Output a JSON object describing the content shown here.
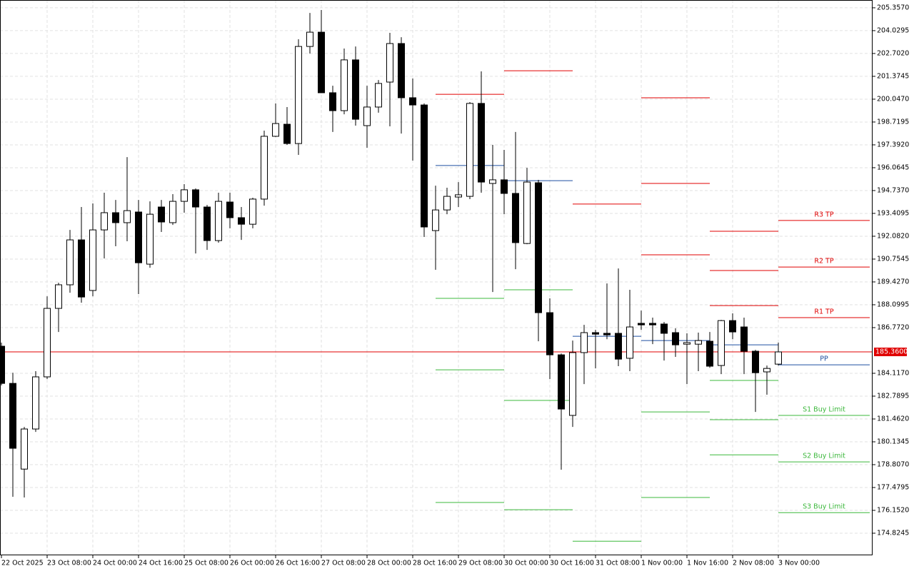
{
  "chart_data": {
    "type": "candlestick",
    "categories": [
      "22 Oct 2025",
      null,
      null,
      null,
      "23 Oct 08:00",
      null,
      null,
      null,
      "24 Oct 00:00",
      null,
      null,
      null,
      "24 Oct 16:00",
      null,
      null,
      null,
      "25 Oct 08:00",
      null,
      null,
      null,
      "26 Oct 00:00",
      null,
      null,
      null,
      "26 Oct 16:00",
      null,
      null,
      null,
      "27 Oct 08:00",
      null,
      null,
      null,
      "28 Oct 00:00",
      null,
      null,
      null,
      "28 Oct 16:00",
      null,
      null,
      null,
      "29 Oct 08:00",
      null,
      null,
      null,
      "30 Oct 00:00",
      null,
      null,
      null,
      "30 Oct 16:00",
      null,
      null,
      null,
      "31 Oct 08:00",
      null,
      null,
      null,
      "1 Nov 00:00",
      null,
      null,
      null,
      "1 Nov 16:00",
      null,
      null,
      null,
      "2 Nov 08:00",
      null,
      null,
      null,
      "3 Nov 00:00"
    ],
    "open": [
      185.69,
      183.53,
      178.55,
      180.88,
      183.91,
      187.89,
      189.26,
      191.87,
      188.93,
      192.45,
      193.45,
      192.87,
      193.49,
      190.46,
      193.78,
      192.87,
      194.11,
      194.78,
      193.78,
      191.83,
      194.07,
      193.16,
      192.78,
      194.24,
      197.89,
      198.59,
      197.47,
      203.11,
      203.94,
      200.42,
      199.38,
      202.33,
      198.51,
      199.59,
      201.04,
      203.28,
      200.13,
      199.71,
      192.41,
      193.61,
      194.36,
      194.4,
      199.8,
      195.15,
      195.36,
      194.57,
      191.66,
      195.19,
      187.64,
      185.19,
      181.67,
      185.32,
      186.48,
      186.44,
      186.44,
      184.99,
      187.02,
      187.02,
      186.98,
      186.48,
      185.81,
      185.81,
      185.98,
      184.57,
      187.18,
      186.81,
      185.4,
      184.2,
      184.65
    ],
    "high": [
      185.9,
      184.15,
      181.0,
      184.24,
      188.59,
      189.38,
      192.45,
      193.78,
      193.99,
      194.61,
      194.19,
      196.68,
      194.19,
      194.11,
      194.19,
      194.53,
      195.11,
      194.86,
      193.9,
      194.61,
      194.61,
      193.78,
      194.32,
      198.22,
      199.8,
      199.59,
      203.53,
      205.06,
      205.23,
      200.83,
      202.99,
      203.11,
      200.83,
      201.16,
      203.9,
      203.65,
      201.25,
      199.8,
      195.02,
      194.9,
      195.23,
      199.88,
      201.66,
      197.39,
      197.1,
      198.14,
      196.06,
      195.36,
      188.47,
      185.27,
      186.02,
      186.93,
      186.64,
      189.34,
      190.21,
      188.97,
      187.76,
      187.35,
      187.1,
      186.73,
      186.44,
      186.48,
      186.52,
      187.22,
      187.6,
      187.35,
      185.48,
      184.57,
      185.9
    ],
    "low": [
      183.41,
      176.94,
      176.9,
      180.71,
      183.78,
      186.52,
      188.8,
      188.22,
      188.59,
      190.79,
      191.5,
      191.79,
      188.72,
      190.25,
      192.33,
      192.74,
      193.45,
      191.08,
      191.29,
      191.71,
      192.54,
      191.87,
      192.54,
      193.86,
      197.85,
      197.39,
      196.81,
      202.7,
      200.4,
      198.14,
      199.17,
      198.51,
      197.22,
      199.26,
      198.47,
      198.05,
      196.48,
      192.04,
      190.13,
      193.36,
      193.78,
      194.24,
      194.61,
      188.84,
      193.36,
      190.17,
      191.62,
      185.98,
      183.78,
      178.51,
      181.0,
      183.49,
      184.4,
      186.1,
      184.53,
      184.24,
      186.64,
      185.81,
      184.86,
      185.07,
      183.49,
      184.24,
      184.44,
      184.07,
      186.1,
      184.07,
      181.87,
      182.87,
      184.57
    ],
    "close": [
      183.53,
      179.76,
      180.88,
      183.91,
      187.89,
      189.26,
      191.87,
      188.55,
      192.45,
      193.45,
      192.87,
      193.57,
      190.54,
      193.36,
      192.91,
      194.11,
      194.78,
      193.78,
      191.83,
      194.11,
      193.16,
      192.78,
      194.24,
      197.89,
      198.63,
      197.47,
      203.11,
      203.94,
      200.42,
      199.38,
      202.33,
      198.88,
      199.59,
      200.96,
      203.28,
      200.13,
      199.71,
      192.62,
      193.61,
      194.4,
      194.49,
      199.8,
      195.23,
      195.36,
      194.57,
      191.71,
      195.23,
      187.64,
      185.19,
      182.04,
      185.32,
      186.48,
      186.39,
      186.35,
      184.94,
      186.81,
      186.93,
      186.93,
      186.44,
      185.77,
      185.9,
      186.02,
      184.53,
      187.18,
      186.52,
      185.4,
      184.15,
      184.4,
      185.36
    ],
    "up_color": "#ffffff",
    "down_color": "#000000",
    "ylim": [
      173.54,
      205.81
    ],
    "yticks": [
      {
        "value": 205.357,
        "label": "205.3570"
      },
      {
        "value": 204.0295,
        "label": "204.0295"
      },
      {
        "value": 202.702,
        "label": "202.7020"
      },
      {
        "value": 201.3745,
        "label": "201.3745"
      },
      {
        "value": 200.047,
        "label": "200.0470"
      },
      {
        "value": 198.7195,
        "label": "198.7195"
      },
      {
        "value": 197.392,
        "label": "197.3920"
      },
      {
        "value": 196.0645,
        "label": "196.0645"
      },
      {
        "value": 194.737,
        "label": "194.7370"
      },
      {
        "value": 193.4095,
        "label": "193.4095"
      },
      {
        "value": 192.082,
        "label": "192.0820"
      },
      {
        "value": 190.7545,
        "label": "190.7545"
      },
      {
        "value": 189.427,
        "label": "189.4270"
      },
      {
        "value": 188.0995,
        "label": "188.0995"
      },
      {
        "value": 186.772,
        "label": "186.7720"
      },
      {
        "value": 184.117,
        "label": "184.1170"
      },
      {
        "value": 182.7895,
        "label": "182.7895"
      },
      {
        "value": 181.462,
        "label": "181.4620"
      },
      {
        "value": 180.1345,
        "label": "180.1345"
      },
      {
        "value": 178.807,
        "label": "178.8070"
      },
      {
        "value": 177.4795,
        "label": "177.4795"
      },
      {
        "value": 176.152,
        "label": "176.1520"
      },
      {
        "value": 174.8245,
        "label": "174.8245"
      }
    ],
    "grid": true,
    "last_price": {
      "value": 185.36,
      "label": "185.3600",
      "color": "#e00000"
    },
    "period_start": [
      38,
      44,
      50,
      56,
      62,
      68
    ],
    "levels": [
      {
        "name": "R3 TP",
        "color": "#e00000",
        "values": [
          null,
          null,
          null,
          200.13,
          192.37,
          193.0
        ]
      },
      {
        "name": "R2 TP",
        "color": "#e00000",
        "values": [
          null,
          null,
          null,
          195.15,
          190.09,
          190.29
        ]
      },
      {
        "name": "R1 TP",
        "color": "#e00000",
        "values": [
          200.33,
          201.7,
          193.95,
          191.0,
          188.05,
          187.35
        ]
      },
      {
        "name": "PP",
        "color": "#1f4fa0",
        "values": [
          196.19,
          195.31,
          186.27,
          186.02,
          185.77,
          184.61
        ]
      },
      {
        "name": "S1 Buy Limit",
        "color": "#3cb83c",
        "values": [
          188.47,
          188.97,
          174.36,
          181.87,
          183.7,
          181.67
        ]
      },
      {
        "name": "S2 Buy Limit",
        "color": "#3cb83c",
        "values": [
          184.32,
          182.54,
          null,
          176.9,
          181.42,
          178.97
        ]
      },
      {
        "name": "S3 Buy Limit",
        "color": "#3cb83c",
        "values": [
          176.61,
          176.19,
          null,
          null,
          179.38,
          176.02
        ]
      }
    ]
  }
}
